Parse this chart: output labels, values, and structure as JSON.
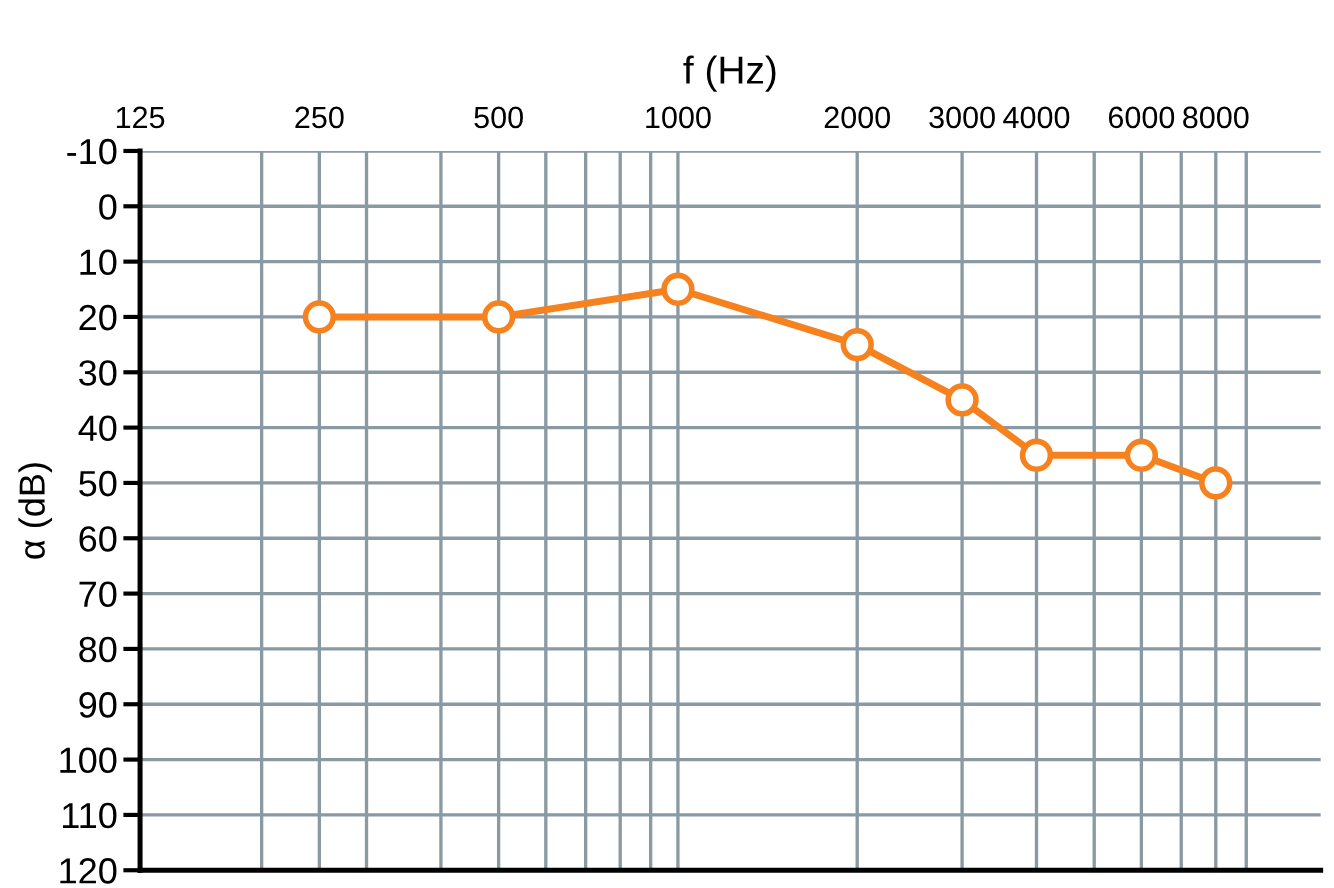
{
  "chart_data": {
    "type": "line",
    "xlabel": "f (Hz)",
    "ylabel": "α (dB)",
    "log": "x",
    "x": [
      250,
      500,
      1000,
      2000,
      3000,
      4000,
      6000,
      8000
    ],
    "series": [
      {
        "color": "#f5821f",
        "values": [
          20,
          20,
          15,
          25,
          35,
          45,
          45,
          50
        ]
      }
    ],
    "marker": "circle",
    "line_style": "solid",
    "grid": true,
    "xlim": [
      125,
      12000
    ],
    "xticks": [
      125,
      {
        "value": 200,
        "label": null
      },
      250,
      {
        "value": 300,
        "label": null
      },
      {
        "value": 400,
        "label": null
      },
      500,
      {
        "value": 600,
        "label": null
      },
      {
        "value": 700,
        "label": null
      },
      {
        "value": 800,
        "label": null
      },
      {
        "value": 900,
        "label": null
      },
      1000,
      2000,
      3000,
      4000,
      {
        "value": 5000,
        "label": null
      },
      6000,
      {
        "value": 7000,
        "label": null
      },
      8000,
      {
        "value": 9000,
        "label": null
      }
    ],
    "ylim": [
      120,
      -10
    ],
    "yticks": [
      -10,
      0,
      10,
      20,
      30,
      40,
      50,
      60,
      70,
      80,
      90,
      100,
      110,
      120
    ]
  }
}
